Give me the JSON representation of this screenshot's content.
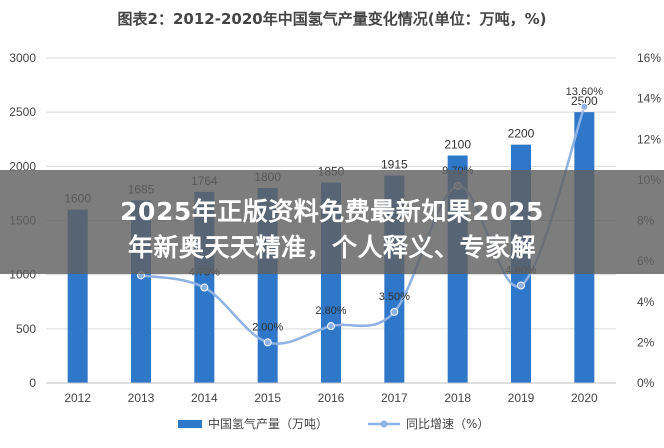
{
  "overlay": {
    "line1": "2025年正版资料免费最新如果2025",
    "line2": "年新奥天天精准，个人释义、专家解"
  },
  "chart_data": {
    "type": "bar",
    "title": "图表2：2012-2020年中国氢气产量变化情况(单位：万吨，%)",
    "categories": [
      "2012",
      "2013",
      "2014",
      "2015",
      "2016",
      "2017",
      "2018",
      "2019",
      "2020"
    ],
    "series": [
      {
        "name": "中国氢气产量（万吨）",
        "type": "bar",
        "axis": "left",
        "values": [
          1600,
          1685,
          1764,
          1800,
          1850,
          1915,
          2100,
          2200,
          2500
        ],
        "value_labels": [
          "1600",
          "1685",
          "1764",
          "1800",
          "1850",
          "1915",
          "2100",
          "2200",
          "2500"
        ]
      },
      {
        "name": "同比增速（%）",
        "type": "line",
        "axis": "right",
        "values": [
          null,
          5.3,
          4.7,
          2.0,
          2.8,
          3.5,
          9.7,
          4.8,
          13.6
        ],
        "value_labels": [
          "",
          "",
          "4.70%",
          "2.00%",
          "2.80%",
          "3.50%",
          "9.70%",
          "4.80%",
          "13.60%"
        ]
      }
    ],
    "y_left": {
      "min": 0,
      "max": 3000,
      "ticks": [
        "0",
        "500",
        "1000",
        "1500",
        "2000",
        "2500",
        "3000"
      ]
    },
    "y_right": {
      "min": 0,
      "max": 16,
      "ticks": [
        "0%",
        "2%",
        "4%",
        "6%",
        "8%",
        "10%",
        "12%",
        "14%",
        "16%"
      ]
    },
    "grid": true,
    "legend_position": "bottom",
    "colors": {
      "bar": "#2f77c9",
      "line": "#8fb2e4",
      "grid": "#d9d9d9",
      "axis_text": "#444444"
    }
  }
}
